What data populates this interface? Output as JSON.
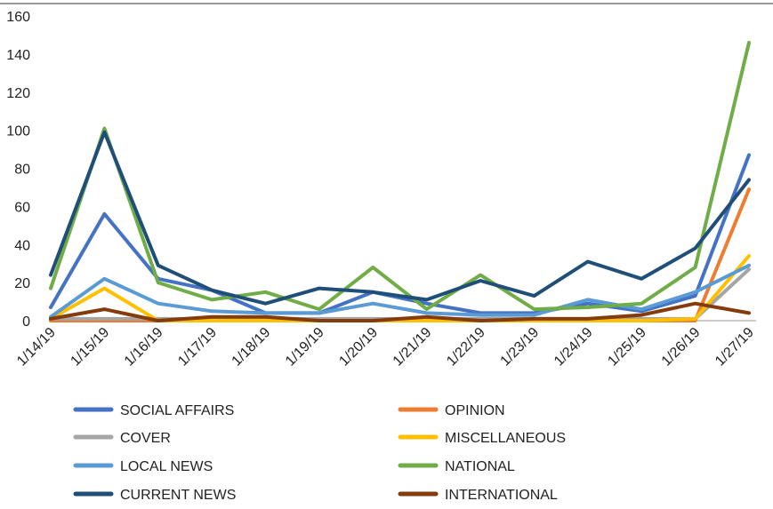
{
  "chart_data": {
    "type": "line",
    "title": "",
    "xlabel": "",
    "ylabel": "",
    "ylim": [
      0,
      160
    ],
    "yticks": [
      0,
      20,
      40,
      60,
      80,
      100,
      120,
      140,
      160
    ],
    "grid": false,
    "legend_position": "bottom",
    "categories": [
      "1/14/19",
      "1/15/19",
      "1/16/19",
      "1/17/19",
      "1/18/19",
      "1/19/19",
      "1/20/19",
      "1/21/19",
      "1/22/19",
      "1/23/19",
      "1/24/19",
      "1/25/19",
      "1/26/19",
      "1/27/19"
    ],
    "series": [
      {
        "name": "SOCIAL AFFAIRS",
        "color": "#4472c4",
        "values": [
          7,
          56,
          22,
          16,
          4,
          4,
          15,
          9,
          4,
          4,
          9,
          5,
          13,
          87
        ]
      },
      {
        "name": "OPINION",
        "color": "#ed7d31",
        "values": [
          0,
          0,
          0,
          0,
          0,
          0,
          0,
          0,
          0,
          0,
          0,
          0,
          0,
          69
        ]
      },
      {
        "name": "COVER",
        "color": "#a5a5a5",
        "values": [
          1,
          1,
          1,
          1,
          1,
          1,
          1,
          1,
          1,
          1,
          1,
          1,
          1,
          27
        ]
      },
      {
        "name": "MISCELLANEOUS",
        "color": "#ffc000",
        "values": [
          1,
          17,
          0,
          0,
          0,
          0,
          0,
          0,
          0,
          0,
          0,
          0,
          1,
          34
        ]
      },
      {
        "name": "LOCAL NEWS",
        "color": "#5b9bd5",
        "values": [
          2,
          22,
          9,
          5,
          4,
          4,
          9,
          4,
          3,
          3,
          11,
          6,
          15,
          29
        ]
      },
      {
        "name": "NATIONAL",
        "color": "#70ad47",
        "values": [
          17,
          101,
          20,
          11,
          15,
          6,
          28,
          6,
          24,
          6,
          7,
          9,
          28,
          146
        ]
      },
      {
        "name": "CURRENT NEWS",
        "color": "#1f4e79",
        "values": [
          24,
          99,
          29,
          16,
          9,
          17,
          15,
          11,
          21,
          13,
          31,
          22,
          38,
          74
        ]
      },
      {
        "name": "INTERNATIONAL",
        "color": "#843c0c",
        "values": [
          1,
          6,
          0,
          2,
          2,
          0,
          0,
          2,
          0,
          1,
          1,
          3,
          9,
          4
        ]
      }
    ]
  }
}
